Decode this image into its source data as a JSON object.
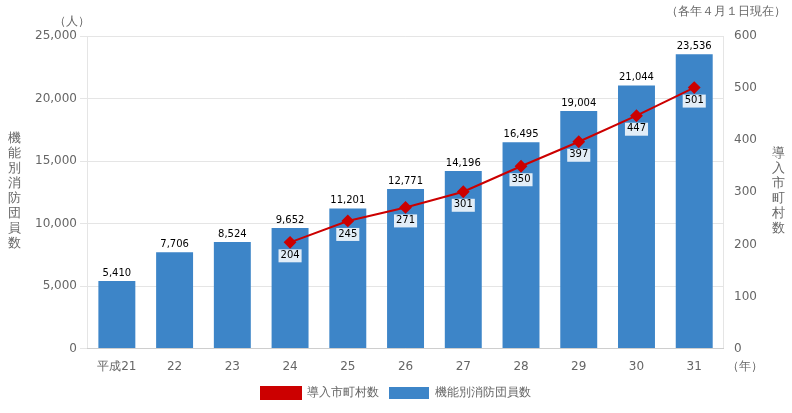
{
  "chart_data": {
    "type": "bar",
    "categories": [
      "平成21",
      "22",
      "23",
      "24",
      "25",
      "26",
      "27",
      "28",
      "29",
      "30",
      "31"
    ],
    "series": [
      {
        "name": "機能別消防団員数",
        "type": "bar",
        "color": "#3d85c8",
        "values": [
          5410,
          7706,
          8524,
          9652,
          11201,
          12771,
          14196,
          16495,
          19004,
          21044,
          23536
        ],
        "value_labels": [
          "5,410",
          "7,706",
          "8,524",
          "9,652",
          "11,201",
          "12,771",
          "14,196",
          "16,495",
          "19,004",
          "21,044",
          "23,536"
        ],
        "data_labels": true
      },
      {
        "name": "導入市町村数",
        "type": "line",
        "axis": "y2",
        "color": "#cc0000",
        "marker": "diamond",
        "values": [
          null,
          null,
          null,
          204,
          245,
          271,
          301,
          350,
          397,
          447,
          501
        ],
        "data_labels": true
      }
    ],
    "ylabel": "機\n能\n別\n消\n防\n団\n員\n数",
    "y2label": "導\n入\n市\n町\n村\n数",
    "annotations": [
      "（各年４月１日現在）",
      "（人）",
      "（年）"
    ],
    "ylim": [
      0,
      25000
    ],
    "yticks": [
      0,
      {
        "value": 5000,
        "label": "5,000"
      },
      {
        "value": 10000,
        "label": "10,000"
      },
      {
        "value": 15000,
        "label": "15,000"
      },
      {
        "value": 20000,
        "label": "20,000"
      },
      {
        "value": 25000,
        "label": "25,000"
      }
    ],
    "y2lim": [
      0,
      600
    ],
    "y2ticks": [
      0,
      100,
      200,
      300,
      400,
      500,
      600
    ],
    "grid": true,
    "legend": "bottom"
  }
}
